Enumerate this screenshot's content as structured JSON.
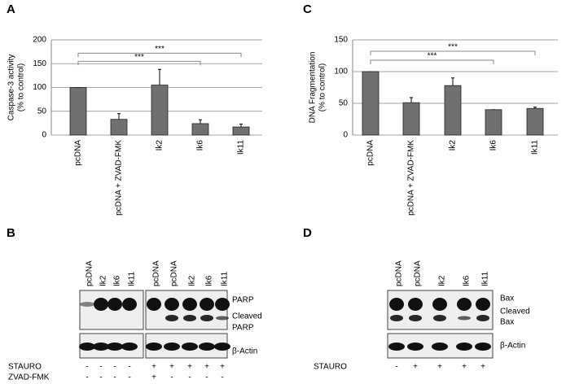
{
  "chart_data": [
    {
      "type": "bar",
      "label": "A",
      "ylabel": [
        "Caspase-3 activity",
        "(% to control)"
      ],
      "categories": [
        "pcDNA",
        "pcDNA + ZVAD-FMK",
        "Ik2",
        "Ik6",
        "Ik11"
      ],
      "values": [
        100,
        33,
        105,
        24,
        17
      ],
      "errors": [
        0,
        12,
        33,
        8,
        6
      ],
      "color": "#707070",
      "ylim": [
        0,
        200
      ],
      "yticks": [
        0,
        50,
        100,
        150,
        200
      ],
      "grid": true,
      "annotations": [
        {
          "text": "***",
          "from": 0,
          "to": 3,
          "y": 155
        },
        {
          "text": "***",
          "from": 0,
          "to": 4,
          "y": 172
        }
      ]
    },
    {
      "type": "bar",
      "label": "C",
      "ylabel": [
        "DNA Fragmentation",
        "(% to control)"
      ],
      "categories": [
        "pcDNA",
        "pcDNA + ZVAD-FMK",
        "Ik2",
        "Ik6",
        "Ik11"
      ],
      "values": [
        100,
        51,
        78,
        40,
        42
      ],
      "errors": [
        0,
        8,
        12,
        0,
        2
      ],
      "color": "#707070",
      "ylim": [
        0,
        150
      ],
      "yticks": [
        0,
        50,
        100,
        150
      ],
      "grid": true,
      "annotations": [
        {
          "text": "***",
          "from": 0,
          "to": 3,
          "y": 118
        },
        {
          "text": "***",
          "from": 0,
          "to": 4,
          "y": 132
        }
      ]
    }
  ],
  "blots": [
    {
      "label": "B",
      "lanes": [
        "pcDNA",
        "Ik2",
        "Ik6",
        "Ik11",
        "pcDNA",
        "pcDNA",
        "Ik2",
        "Ik6",
        "Ik11"
      ],
      "bands": [
        [
          "PARP"
        ],
        [
          "Cleaved",
          "PARP"
        ],
        [
          "β-Actin"
        ]
      ],
      "treatments": [
        {
          "name": "STAURO",
          "marks": [
            "-",
            "-",
            "-",
            "-",
            "+",
            "+",
            "+",
            "+",
            "+"
          ]
        },
        {
          "name": "ZVAD-FMK",
          "marks": [
            "-",
            "-",
            "-",
            "-",
            "+",
            "-",
            "-",
            "-",
            "-"
          ]
        }
      ]
    },
    {
      "label": "D",
      "lanes": [
        "pcDNA",
        "pcDNA",
        "Ik2",
        "Ik6",
        "Ik11"
      ],
      "bands": [
        [
          "Bax"
        ],
        [
          "Cleaved",
          "Bax"
        ],
        [
          "β-Actin"
        ]
      ],
      "treatments": [
        {
          "name": "STAURO",
          "marks": [
            "-",
            "+",
            "+",
            "+",
            "+"
          ]
        }
      ]
    }
  ]
}
